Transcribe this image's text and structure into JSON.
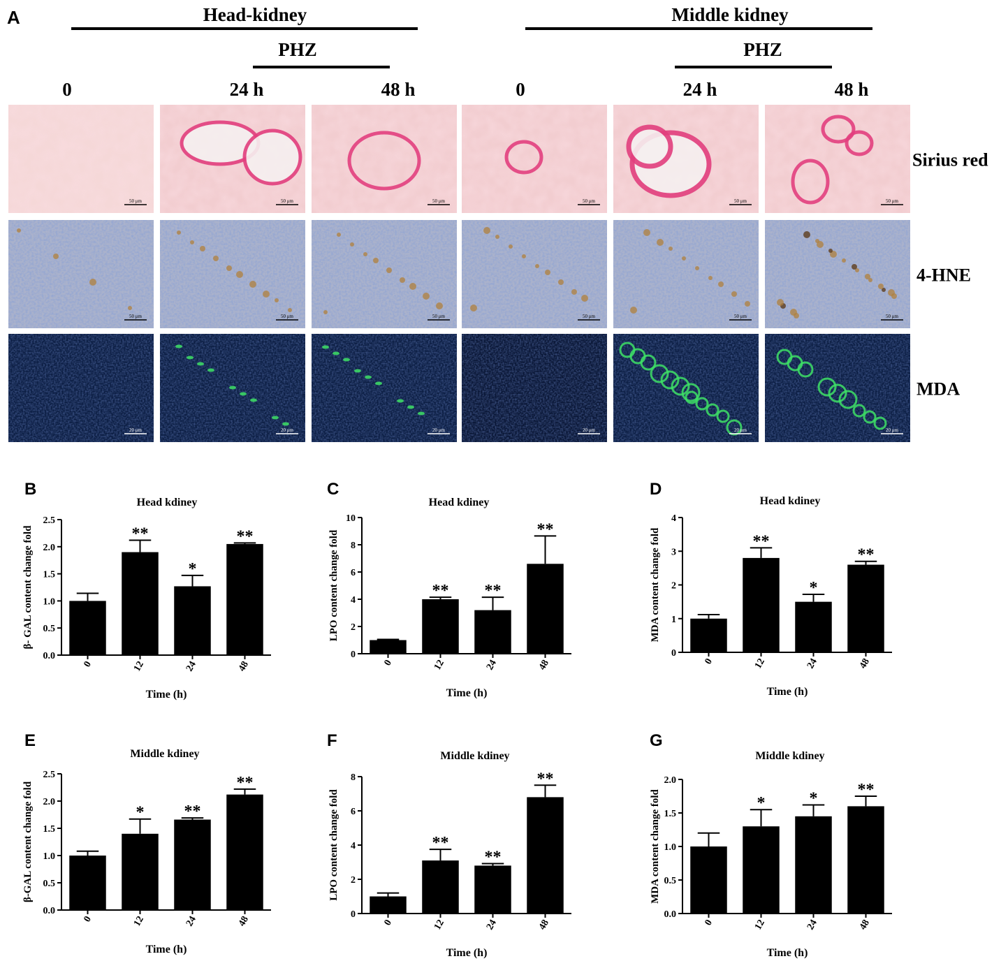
{
  "panel_a": {
    "letter": "A",
    "groups": [
      {
        "title": "Head-kidney",
        "treatment": "PHZ",
        "columns": [
          "0",
          "24 h",
          "48 h"
        ]
      },
      {
        "title": "Middle kidney",
        "treatment": "PHZ",
        "columns": [
          "0",
          "24 h",
          "48 h"
        ]
      }
    ],
    "rows": [
      "Sirius red",
      "4-HNE",
      "MDA"
    ],
    "scale_bars": {
      "sirius_red": "50 μm",
      "hne": "50 μm",
      "mda": "20 μm"
    },
    "colors": {
      "sirius_bg": "#f2cdd0",
      "sirius_stain": "#e23f7e",
      "hne_bg": "#aab2cc",
      "hne_stain": "#b0803c",
      "mda_bg": "#0d1f45",
      "mda_stain": "#3ee066"
    }
  },
  "chart_data": [
    {
      "letter": "B",
      "type": "bar",
      "title": "Head kdiney",
      "xlabel": "Time (h)",
      "ylabel": "β- GAL content change fold",
      "categories": [
        "0",
        "12",
        "24",
        "48"
      ],
      "values": [
        1.0,
        1.9,
        1.27,
        2.05
      ],
      "errors": [
        0.14,
        0.22,
        0.2,
        0.02
      ],
      "significance": [
        "",
        "**",
        "*",
        "**"
      ],
      "ylim": [
        0,
        2.5
      ],
      "yticks": [
        "0.0",
        "0.5",
        "1.0",
        "1.5",
        "2.0",
        "2.5"
      ]
    },
    {
      "letter": "C",
      "type": "bar",
      "title": "Head kdiney",
      "xlabel": "Time (h)",
      "ylabel": "LPO content change fold",
      "categories": [
        "0",
        "12",
        "24",
        "48"
      ],
      "values": [
        1.0,
        4.0,
        3.2,
        6.6
      ],
      "errors": [
        0.05,
        0.15,
        0.95,
        2.05
      ],
      "significance": [
        "",
        "**",
        "**",
        "**"
      ],
      "ylim": [
        0,
        10
      ],
      "yticks": [
        "0",
        "2",
        "4",
        "6",
        "8",
        "10"
      ]
    },
    {
      "letter": "D",
      "type": "bar",
      "title": "Head kdiney",
      "xlabel": "Time (h)",
      "ylabel": "MDA content change fold",
      "categories": [
        "0",
        "12",
        "24",
        "48"
      ],
      "values": [
        1.0,
        2.8,
        1.5,
        2.6
      ],
      "errors": [
        0.12,
        0.3,
        0.22,
        0.1
      ],
      "significance": [
        "",
        "**",
        "*",
        "**"
      ],
      "ylim": [
        0,
        4
      ],
      "yticks": [
        "0",
        "1",
        "2",
        "3",
        "4"
      ]
    },
    {
      "letter": "E",
      "type": "bar",
      "title": "Middle kdiney",
      "xlabel": "Time (h)",
      "ylabel": "β-GAL content change fold",
      "categories": [
        "0",
        "12",
        "24",
        "48"
      ],
      "values": [
        1.0,
        1.4,
        1.66,
        2.12
      ],
      "errors": [
        0.08,
        0.27,
        0.03,
        0.1
      ],
      "significance": [
        "",
        "*",
        "**",
        "**"
      ],
      "ylim": [
        0,
        2.5
      ],
      "yticks": [
        "0.0",
        "0.5",
        "1.0",
        "1.5",
        "2.0",
        "2.5"
      ]
    },
    {
      "letter": "F",
      "type": "bar",
      "title": "Middle kdiney",
      "xlabel": "Time (h)",
      "ylabel": "LPO content change fold",
      "categories": [
        "0",
        "12",
        "24",
        "48"
      ],
      "values": [
        1.0,
        3.1,
        2.8,
        6.8
      ],
      "errors": [
        0.2,
        0.65,
        0.12,
        0.7
      ],
      "significance": [
        "",
        "**",
        "**",
        "**"
      ],
      "ylim": [
        0,
        8
      ],
      "yticks": [
        "0",
        "2",
        "4",
        "6",
        "8"
      ]
    },
    {
      "letter": "G",
      "type": "bar",
      "title": "Middle kdiney",
      "xlabel": "Time (h)",
      "ylabel": "MDA content change fold",
      "categories": [
        "0",
        "12",
        "24",
        "48"
      ],
      "values": [
        1.0,
        1.3,
        1.45,
        1.6
      ],
      "errors": [
        0.2,
        0.25,
        0.17,
        0.15
      ],
      "significance": [
        "",
        "*",
        "*",
        "**"
      ],
      "ylim": [
        0,
        2.0
      ],
      "yticks": [
        "0.0",
        "0.5",
        "1.0",
        "1.5",
        "2.0"
      ]
    }
  ]
}
